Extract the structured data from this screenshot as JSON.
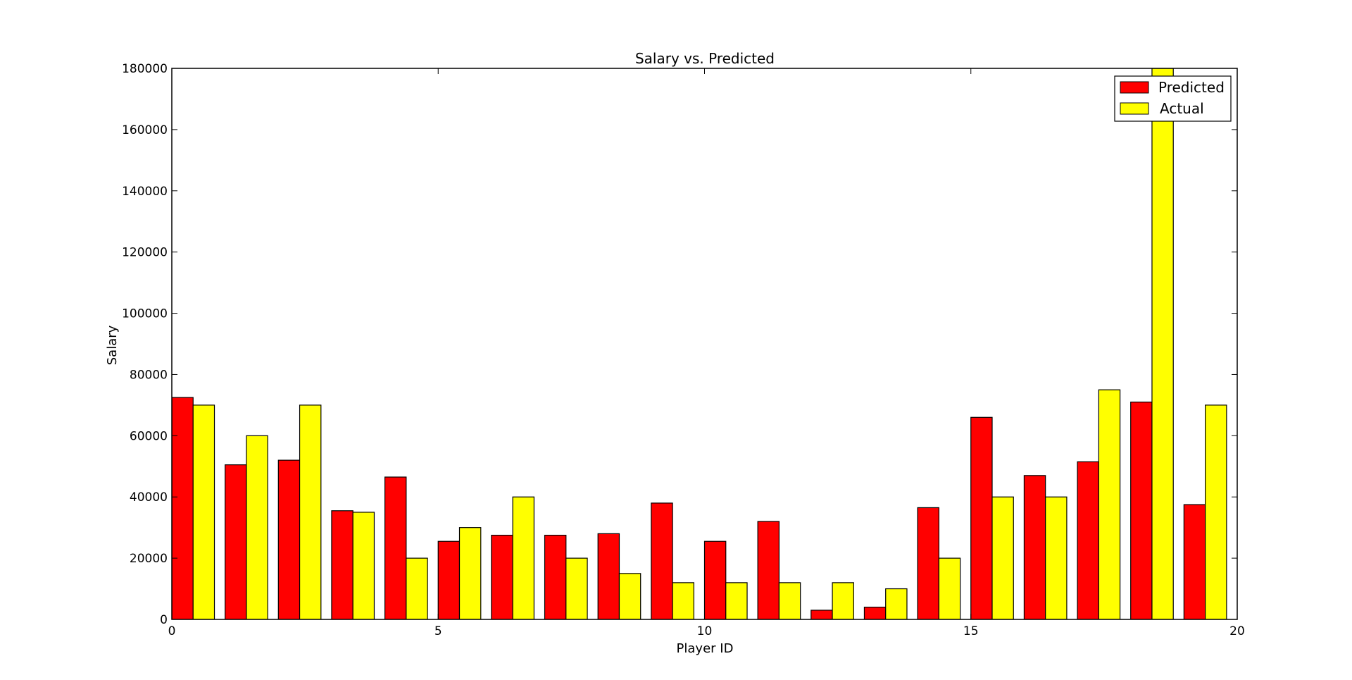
{
  "chart_data": {
    "type": "bar",
    "title": "Salary vs. Predicted",
    "xlabel": "Player ID",
    "ylabel": "Salary",
    "xlim": [
      0,
      20
    ],
    "ylim": [
      0,
      180000
    ],
    "xticks": [
      0,
      5,
      10,
      15,
      20
    ],
    "yticks": [
      0,
      20000,
      40000,
      60000,
      80000,
      100000,
      120000,
      140000,
      160000,
      180000
    ],
    "grid": false,
    "legend_position": "top-right",
    "x": [
      0,
      1,
      2,
      3,
      4,
      5,
      6,
      7,
      8,
      9,
      10,
      11,
      12,
      13,
      14,
      15,
      16,
      17,
      18,
      19
    ],
    "bar_width": 0.4,
    "series": [
      {
        "name": "Predicted",
        "color": "#ff0000",
        "values": [
          72500,
          50500,
          52000,
          35500,
          46500,
          25500,
          27500,
          27500,
          28000,
          38000,
          25500,
          32000,
          3000,
          4000,
          36500,
          66000,
          47000,
          51500,
          71000,
          37500
        ]
      },
      {
        "name": "Actual",
        "color": "#ffff00",
        "values": [
          70000,
          60000,
          70000,
          35000,
          20000,
          30000,
          40000,
          20000,
          15000,
          12000,
          12000,
          12000,
          12000,
          10000,
          20000,
          40000,
          40000,
          75000,
          180000,
          70000
        ]
      }
    ]
  }
}
